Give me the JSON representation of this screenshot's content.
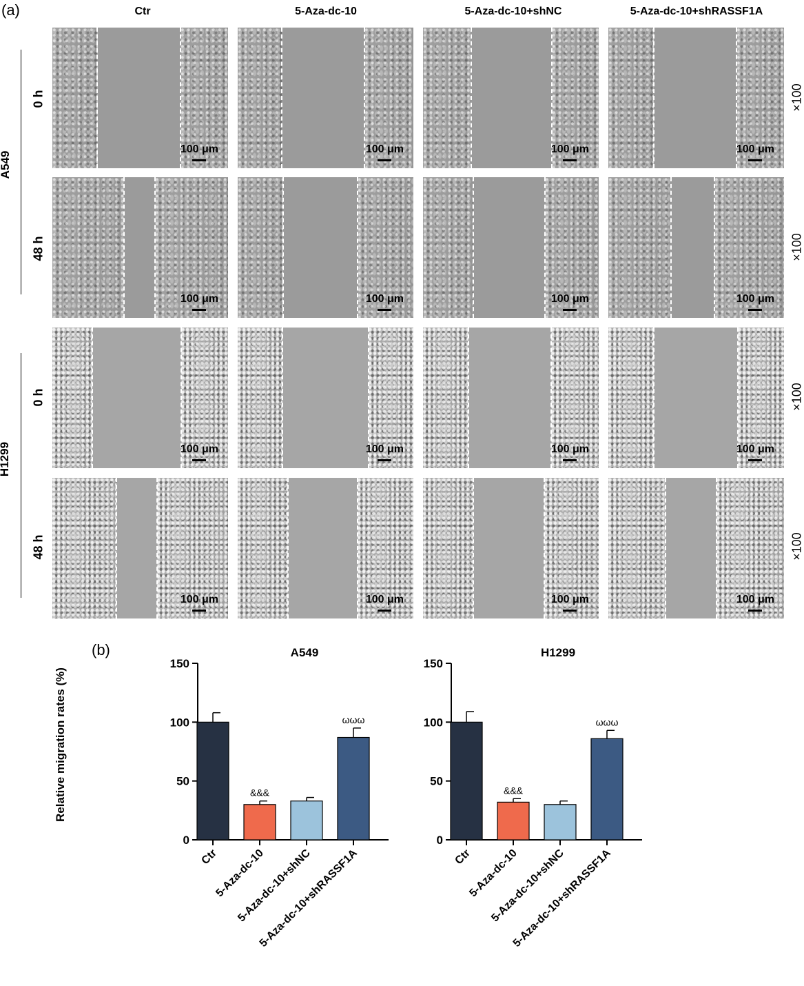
{
  "panel_a": {
    "letter": "(a)",
    "columns": [
      "Ctr",
      "5-Aza-dc-10",
      "5-Aza-dc-10+shNC",
      "5-Aza-dc-10+shRASSF1A"
    ],
    "groups": [
      {
        "name": "A549",
        "rows": [
          "0 h",
          "48 h"
        ]
      },
      {
        "name": "H1299",
        "rows": [
          "0 h",
          "48 h"
        ]
      }
    ],
    "scale_label": "100 μm",
    "magnification": "×100"
  },
  "panel_b": {
    "letter": "(b)",
    "ylabel": "Relative migration rates (%)"
  },
  "chart_data": [
    {
      "type": "bar",
      "title": "A549",
      "categories": [
        "Ctr",
        "5-Aza-dc-10",
        "5-Aza-dc-10+shNC",
        "5-Aza-dc-10+shRASSF1A"
      ],
      "values": [
        100,
        30,
        33,
        87
      ],
      "errors": [
        8,
        3,
        3,
        8
      ],
      "annotations": [
        "",
        "&&&",
        "",
        "ωωω"
      ],
      "colors": [
        "#263143",
        "#ef6a4c",
        "#9cc3dc",
        "#3c5a83"
      ],
      "ylabel": "Relative migration rates (%)",
      "ylim": [
        0,
        150
      ],
      "yticks": [
        0,
        50,
        100,
        150
      ]
    },
    {
      "type": "bar",
      "title": "H1299",
      "categories": [
        "Ctr",
        "5-Aza-dc-10",
        "5-Aza-dc-10+shNC",
        "5-Aza-dc-10+shRASSF1A"
      ],
      "values": [
        100,
        32,
        30,
        86
      ],
      "errors": [
        9,
        3,
        3,
        7
      ],
      "annotations": [
        "",
        "&&&",
        "",
        "ωωω"
      ],
      "colors": [
        "#263143",
        "#ef6a4c",
        "#9cc3dc",
        "#3c5a83"
      ],
      "ylabel": "",
      "ylim": [
        0,
        150
      ],
      "yticks": [
        0,
        50,
        100,
        150
      ]
    }
  ]
}
